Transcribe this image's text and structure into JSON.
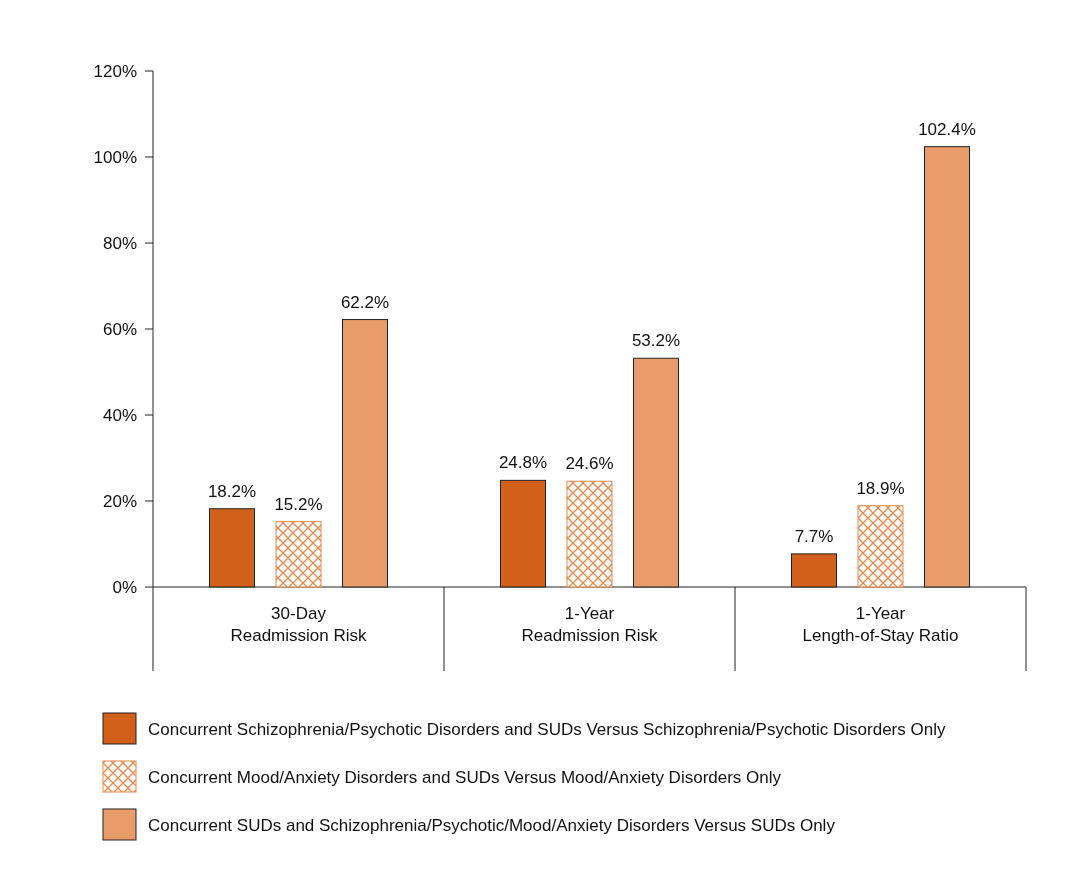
{
  "chart_data": {
    "type": "bar",
    "categories": [
      "30-Day\nReadmission Risk",
      "1-Year\nReadmission Risk",
      "1-Year\nLength-of-Stay Ratio"
    ],
    "series": [
      {
        "name": "Concurrent Schizophrenia/Psychotic Disorders and SUDs Versus Schizophrenia/Psychotic Disorders Only",
        "color": "#d2601a",
        "values": [
          18.2,
          24.8,
          7.7
        ],
        "value_labels": [
          "18.2%",
          "24.8%",
          "7.7%"
        ]
      },
      {
        "name": "Concurrent Mood/Anxiety Disorders and SUDs Versus Mood/Anxiety Disorders Only",
        "color": "#e8894a",
        "values": [
          15.2,
          24.6,
          18.9
        ],
        "value_labels": [
          "15.2%",
          "24.6%",
          "18.9%"
        ]
      },
      {
        "name": "Concurrent SUDs and Schizophrenia/Psychotic/Mood/Anxiety Disorders Versus SUDs Only",
        "color": "#e89c6a",
        "values": [
          62.2,
          53.2,
          102.4
        ],
        "value_labels": [
          "62.2%",
          "53.2%",
          "102.4%"
        ]
      }
    ],
    "ylim": [
      0,
      120
    ],
    "yticks": [
      {
        "value": 0,
        "label": "0%"
      },
      {
        "value": 20,
        "label": "20%"
      },
      {
        "value": 40,
        "label": "40%"
      },
      {
        "value": 60,
        "label": "60%"
      },
      {
        "value": 80,
        "label": "80%"
      },
      {
        "value": 100,
        "label": "100%"
      },
      {
        "value": 120,
        "label": "120%"
      }
    ],
    "grid": false,
    "legend": "bottom"
  }
}
